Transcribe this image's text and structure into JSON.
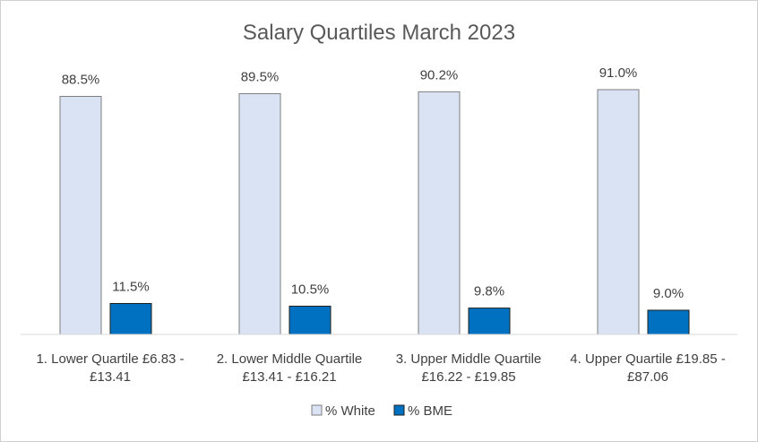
{
  "chart_data": {
    "type": "bar",
    "title": "Salary Quartiles March 2023",
    "categories": [
      [
        "1. Lower Quartile £6.83 -",
        "£13.41"
      ],
      [
        "2. Lower Middle Quartile",
        "£13.41 - £16.21"
      ],
      [
        "3. Upper Middle Quartile",
        "£16.22 - £19.85"
      ],
      [
        "4. Upper Quartile £19.85 -",
        "£87.06"
      ]
    ],
    "series": [
      {
        "name": "% White",
        "values": [
          88.5,
          89.5,
          90.2,
          91.0
        ],
        "labels": [
          "88.5%",
          "89.5%",
          "90.2%",
          "91.0%"
        ],
        "color": "#dae3f3",
        "stroke": "#7f7f7f"
      },
      {
        "name": "% BME",
        "values": [
          11.5,
          10.5,
          9.8,
          9.0
        ],
        "labels": [
          "11.5%",
          "10.5%",
          "9.8%",
          "9.0%"
        ],
        "color": "#0070c0",
        "stroke": "#1f1f1f"
      }
    ],
    "ylim": [
      0,
      100
    ],
    "grid": false,
    "legend": "bottom"
  }
}
